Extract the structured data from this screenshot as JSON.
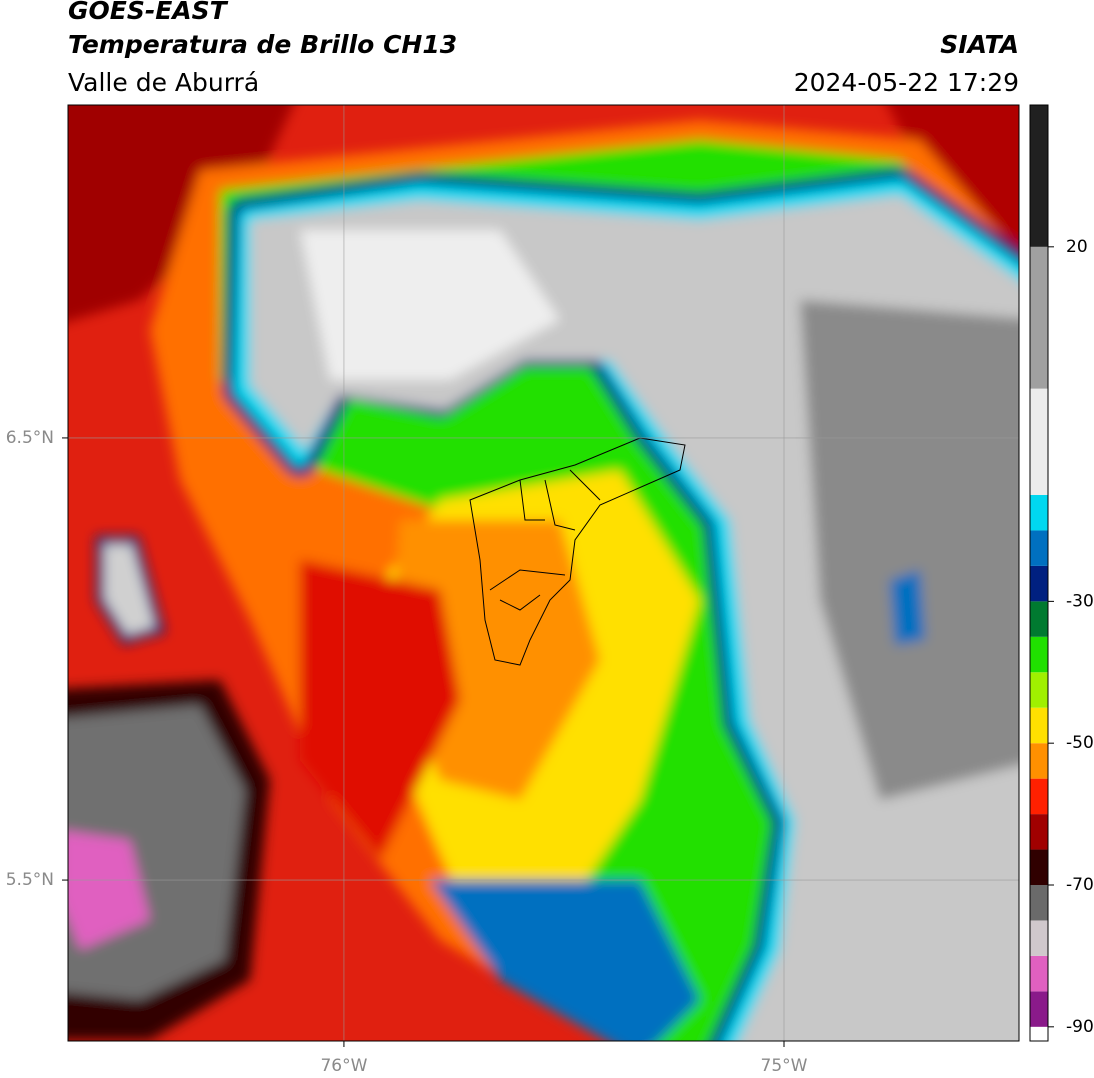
{
  "header": {
    "satellite": "GOES-EAST",
    "product": "Temperatura de Brillo CH13",
    "agency": "SIATA",
    "region": "Valle de Aburrá",
    "datetime": "2024-05-22 17:29"
  },
  "map": {
    "xlim": [
      -76.627,
      -74.466
    ],
    "ylim": [
      5.136,
      7.253
    ],
    "xticks": [
      {
        "value": -76,
        "label": "76°W"
      },
      {
        "value": -75,
        "label": "75°W"
      }
    ],
    "yticks": [
      {
        "value": 6.5,
        "label": "6.5°N"
      },
      {
        "value": 5.5,
        "label": "5.5°N"
      }
    ],
    "grid": true
  },
  "colorbar": {
    "clim": [
      -92,
      40
    ],
    "ticks": [
      20,
      -30,
      -50,
      -70,
      -90
    ],
    "levels": [
      -92,
      -90,
      -85,
      -80,
      -75,
      -70,
      -65,
      -60,
      -55,
      -50,
      -45,
      -40,
      -35,
      -30,
      -25,
      -20,
      -15,
      0,
      20,
      40
    ],
    "colors": [
      "#ffffff",
      "#8a1a8a",
      "#e060c0",
      "#d0c8cc",
      "#6a6a6a",
      "#300000",
      "#a00000",
      "#ff2000",
      "#ff9000",
      "#ffe000",
      "#a0f000",
      "#20e000",
      "#007a30",
      "#002080",
      "#0070c0",
      "#00d8f0",
      "#ececec",
      "#a0a0a0",
      "#202020"
    ]
  }
}
